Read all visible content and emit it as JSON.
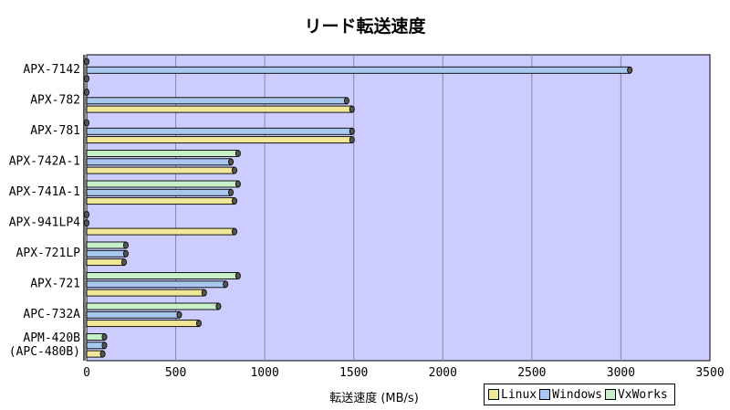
{
  "chart_data": {
    "type": "bar",
    "orientation": "horizontal",
    "title": "リード転送速度",
    "xlabel": "転送速度 (MB/s)",
    "xlim": [
      0,
      3500
    ],
    "xticks": [
      0,
      500,
      1000,
      1500,
      2000,
      2500,
      3000,
      3500
    ],
    "grid": true,
    "legend_position": "bottom-right",
    "categories": [
      [
        "APX-7142"
      ],
      [
        "APX-782"
      ],
      [
        "APX-781"
      ],
      [
        "APX-742A-1"
      ],
      [
        "APX-741A-1"
      ],
      [
        "APX-941LP4"
      ],
      [
        "APX-721LP"
      ],
      [
        "APX-721"
      ],
      [
        "APC-732A"
      ],
      [
        "APM-420B",
        "(APC-480B)"
      ]
    ],
    "series": [
      {
        "name": "VxWorks",
        "color": "#c8f0c8",
        "values": [
          0,
          0,
          0,
          850,
          850,
          0,
          220,
          850,
          740,
          100
        ]
      },
      {
        "name": "Windows",
        "color": "#a8c8f0",
        "values": [
          3050,
          1460,
          1490,
          810,
          810,
          0,
          220,
          780,
          520,
          100
        ]
      },
      {
        "name": "Linux",
        "color": "#f0e898",
        "values": [
          0,
          1490,
          1490,
          830,
          830,
          830,
          210,
          660,
          630,
          90
        ]
      }
    ],
    "legend_order": [
      "Linux",
      "Windows",
      "VxWorks"
    ],
    "plot_background": "#ccccff"
  }
}
